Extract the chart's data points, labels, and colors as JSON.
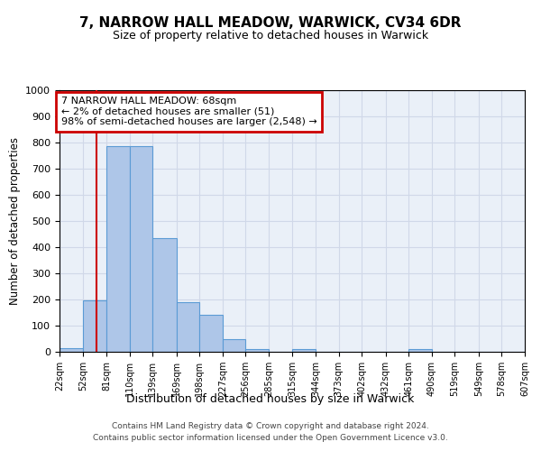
{
  "title": "7, NARROW HALL MEADOW, WARWICK, CV34 6DR",
  "subtitle": "Size of property relative to detached houses in Warwick",
  "xlabel": "Distribution of detached houses by size in Warwick",
  "ylabel": "Number of detached properties",
  "bin_labels": [
    "22sqm",
    "52sqm",
    "81sqm",
    "110sqm",
    "139sqm",
    "169sqm",
    "198sqm",
    "227sqm",
    "256sqm",
    "285sqm",
    "315sqm",
    "344sqm",
    "373sqm",
    "402sqm",
    "432sqm",
    "461sqm",
    "490sqm",
    "519sqm",
    "549sqm",
    "578sqm",
    "607sqm"
  ],
  "bin_edges": [
    22,
    52,
    81,
    110,
    139,
    169,
    198,
    227,
    256,
    285,
    315,
    344,
    373,
    402,
    432,
    461,
    490,
    519,
    549,
    578,
    607
  ],
  "bar_values": [
    15,
    195,
    785,
    785,
    435,
    190,
    140,
    48,
    12,
    0,
    10,
    0,
    0,
    0,
    0,
    10,
    0,
    0,
    0,
    0
  ],
  "bar_color": "#aec6e8",
  "bar_edge_color": "#5b9bd5",
  "property_line_x": 68,
  "property_line_color": "#cc0000",
  "ylim": [
    0,
    1000
  ],
  "yticks": [
    0,
    100,
    200,
    300,
    400,
    500,
    600,
    700,
    800,
    900,
    1000
  ],
  "annotation_title": "7 NARROW HALL MEADOW: 68sqm",
  "annotation_line1": "← 2% of detached houses are smaller (51)",
  "annotation_line2": "98% of semi-detached houses are larger (2,548) →",
  "annotation_box_color": "#cc0000",
  "footer_line1": "Contains HM Land Registry data © Crown copyright and database right 2024.",
  "footer_line2": "Contains public sector information licensed under the Open Government Licence v3.0.",
  "grid_color": "#d0d8e8",
  "background_color": "#eaf0f8"
}
